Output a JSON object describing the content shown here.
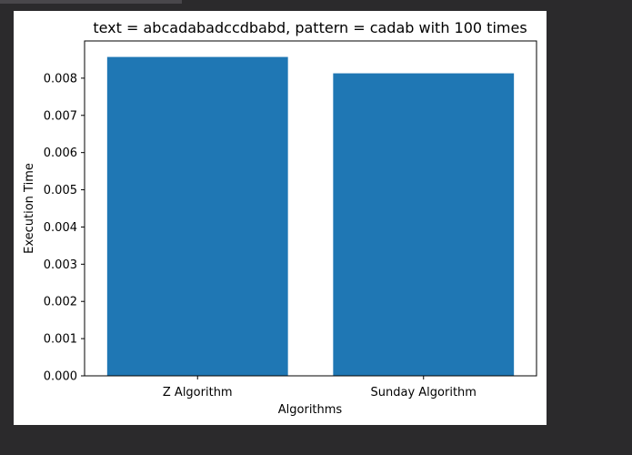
{
  "chart_data": {
    "type": "bar",
    "title": "text = abcadabadccdbabd, pattern = cadab  with 100 times",
    "xlabel": "Algorithms",
    "ylabel": "Execution Time",
    "categories": [
      "Z Algorithm",
      "Sunday Algorithm"
    ],
    "values": [
      0.00857,
      0.00813
    ],
    "ylim": [
      0,
      0.009
    ],
    "yticks": [
      "0.000",
      "0.001",
      "0.002",
      "0.003",
      "0.004",
      "0.005",
      "0.006",
      "0.007",
      "0.008"
    ],
    "bar_color": "#1f77b4",
    "grid": false
  }
}
